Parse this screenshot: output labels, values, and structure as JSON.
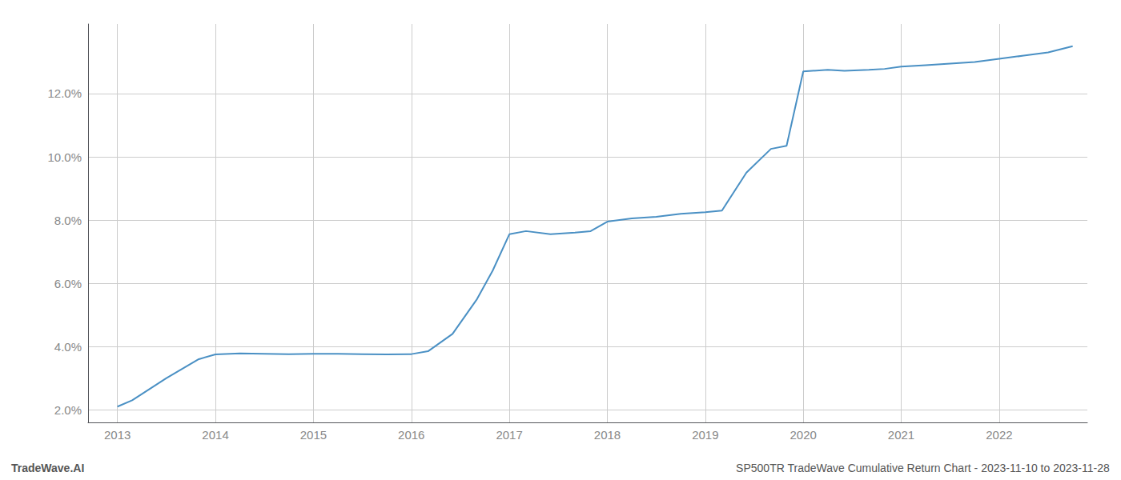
{
  "chart_data": {
    "type": "line",
    "annotations": [
      "TradeWave.AI",
      "SP500TR TradeWave Cumulative Return Chart - 2023-11-10 to 2023-11-28"
    ],
    "x": [
      2013.0,
      2013.15,
      2013.5,
      2013.83,
      2014.0,
      2014.25,
      2014.5,
      2014.75,
      2015.0,
      2015.25,
      2015.5,
      2015.75,
      2016.0,
      2016.17,
      2016.42,
      2016.67,
      2016.83,
      2017.0,
      2017.17,
      2017.42,
      2017.67,
      2017.83,
      2018.0,
      2018.25,
      2018.5,
      2018.75,
      2019.0,
      2019.17,
      2019.42,
      2019.67,
      2019.83,
      2020.0,
      2020.25,
      2020.42,
      2020.67,
      2020.83,
      2021.0,
      2021.25,
      2021.5,
      2021.75,
      2022.0,
      2022.25,
      2022.5,
      2022.75
    ],
    "values": [
      2.1,
      2.3,
      3.0,
      3.6,
      3.75,
      3.78,
      3.77,
      3.76,
      3.77,
      3.77,
      3.76,
      3.75,
      3.76,
      3.85,
      4.4,
      5.5,
      6.4,
      7.55,
      7.65,
      7.55,
      7.6,
      7.65,
      7.95,
      8.05,
      8.1,
      8.2,
      8.25,
      8.3,
      9.5,
      10.25,
      10.35,
      12.7,
      12.75,
      12.72,
      12.75,
      12.78,
      12.85,
      12.9,
      12.95,
      13.0,
      13.1,
      13.2,
      13.3,
      13.5
    ],
    "color": "#4a90c4",
    "xlim": [
      2012.7,
      2022.9
    ],
    "xticks": [
      2013,
      2014,
      2015,
      2016,
      2017,
      2018,
      2019,
      2020,
      2021,
      2022
    ],
    "ylim": [
      1.6,
      14.2
    ],
    "yticks": [
      {
        "value": 2.0,
        "label": "2.0%"
      },
      {
        "value": 4.0,
        "label": "4.0%"
      },
      {
        "value": 6.0,
        "label": "6.0%"
      },
      {
        "value": 8.0,
        "label": "8.0%"
      },
      {
        "value": 10.0,
        "label": "10.0%"
      },
      {
        "value": 12.0,
        "label": "12.0%"
      }
    ],
    "grid": true
  }
}
